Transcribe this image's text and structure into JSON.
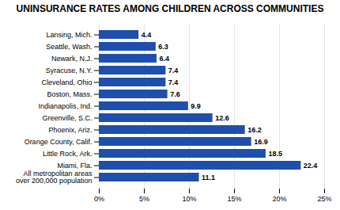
{
  "chart_data": {
    "type": "bar",
    "orientation": "horizontal",
    "title": "UNINSURANCE RATES AMONG CHILDREN ACROSS COMMUNITIES",
    "categories": [
      "All metropolitan areas\nover 200,000 population",
      "Miami, Fla.",
      "Little Rock, Ark.",
      "Orange County, Calif.",
      "Phoenix, Ariz.",
      "Greenville, S.C.",
      "Indianapolis, Ind.",
      "Boston, Mass.",
      "Cleveland, Ohio",
      "Syracuse, N.Y.",
      "Newark, N.J.",
      "Seattle, Wash.",
      "Lansing, Mich."
    ],
    "values": [
      11.1,
      22.4,
      18.5,
      16.9,
      16.2,
      12.6,
      9.9,
      7.6,
      7.4,
      7.4,
      6.4,
      6.3,
      4.4
    ],
    "color": "#1f4fac",
    "xlim": [
      0,
      25
    ],
    "xticks": [
      {
        "value": 0,
        "label": "0%"
      },
      {
        "value": 5,
        "label": "5%"
      },
      {
        "value": 10,
        "label": "10%"
      },
      {
        "value": 15,
        "label": "15%"
      },
      {
        "value": 20,
        "label": "20%"
      },
      {
        "value": 25,
        "label": "25%"
      }
    ],
    "grid": true,
    "data_labels": true
  }
}
